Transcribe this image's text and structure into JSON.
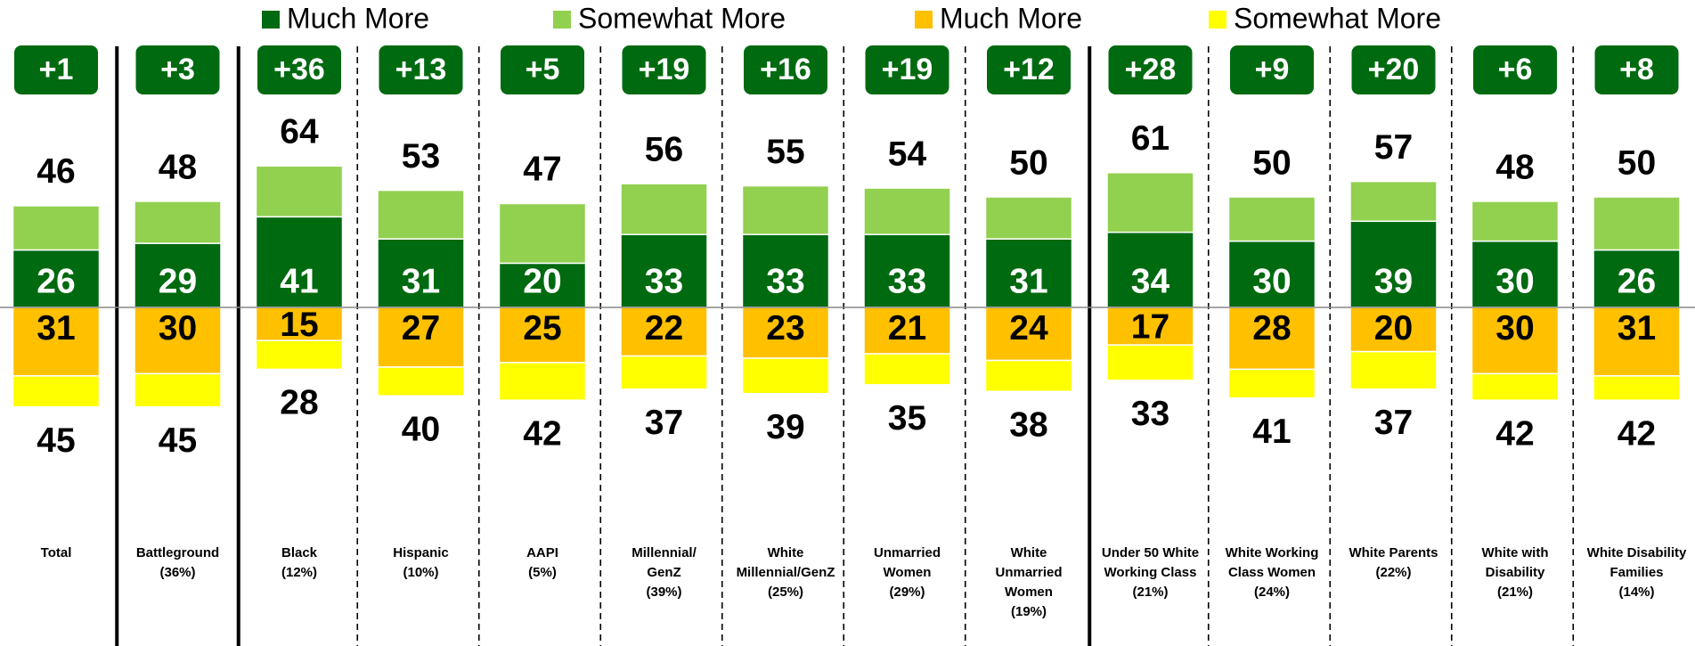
{
  "chart_data": {
    "type": "diverging-stacked-bar",
    "categories": [
      "Total",
      "Battleground\n(36%)",
      "Black\n(12%)",
      "Hispanic\n(10%)",
      "AAPI\n(5%)",
      "Millennial/\nGenZ\n(39%)",
      "White\nMillennial/GenZ\n(25%)",
      "Unmarried\nWomen\n(29%)",
      "White\nUnmarried\nWomen\n(19%)",
      "Under 50 White\nWorking Class\n(21%)",
      "White Working\nClass Women\n(24%)",
      "White Parents\n(22%)",
      "White with\nDisability\n(21%)",
      "White Disability\nFamilies\n(14%)"
    ],
    "series": [
      {
        "name": "Much More",
        "color": "#006a10",
        "side": "up",
        "values": [
          26,
          29,
          41,
          31,
          20,
          33,
          33,
          33,
          31,
          34,
          30,
          39,
          30,
          26
        ]
      },
      {
        "name": "Somewhat More",
        "color": "#92d050",
        "side": "up",
        "values": [
          20,
          19,
          23,
          22,
          27,
          23,
          22,
          21,
          19,
          27,
          20,
          18,
          18,
          24
        ]
      },
      {
        "name": "Much More",
        "color": "#ffc000",
        "side": "down",
        "values": [
          31,
          30,
          15,
          27,
          25,
          22,
          23,
          21,
          24,
          17,
          28,
          20,
          30,
          31
        ]
      },
      {
        "name": "Somewhat More",
        "color": "#ffff00",
        "side": "down",
        "values": [
          14,
          15,
          13,
          13,
          17,
          15,
          16,
          14,
          14,
          16,
          13,
          17,
          12,
          11
        ]
      }
    ],
    "up_totals": [
      46,
      48,
      64,
      53,
      47,
      56,
      55,
      54,
      50,
      61,
      50,
      57,
      48,
      50
    ],
    "down_totals": [
      45,
      45,
      28,
      40,
      42,
      37,
      39,
      35,
      38,
      33,
      41,
      37,
      42,
      42
    ],
    "net": [
      {
        "value": 1,
        "label": "+1"
      },
      {
        "value": 3,
        "label": "+3"
      },
      {
        "value": 36,
        "label": "+36"
      },
      {
        "value": 13,
        "label": "+13"
      },
      {
        "value": 5,
        "label": "+5"
      },
      {
        "value": 19,
        "label": "+19"
      },
      {
        "value": 16,
        "label": "+16"
      },
      {
        "value": 19,
        "label": "+19"
      },
      {
        "value": 12,
        "label": "+12"
      },
      {
        "value": 28,
        "label": "+28"
      },
      {
        "value": 9,
        "label": "+9"
      },
      {
        "value": 20,
        "label": "+20"
      },
      {
        "value": 6,
        "label": "+6"
      },
      {
        "value": 8,
        "label": "+8"
      }
    ],
    "badge_color": "#006a10"
  }
}
